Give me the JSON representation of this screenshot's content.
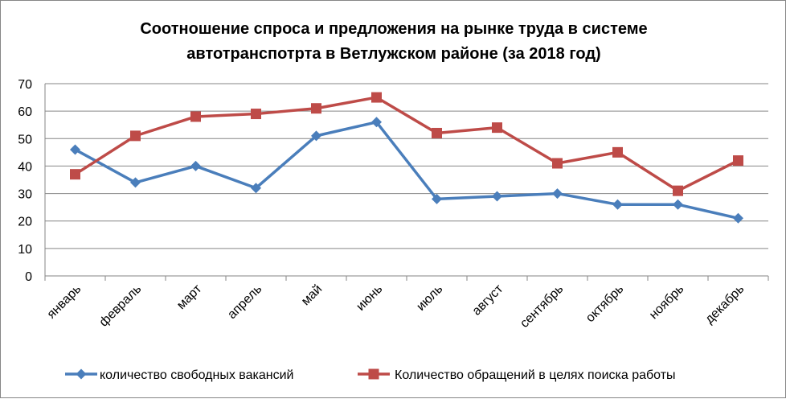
{
  "chart_data": {
    "type": "line",
    "title_lines": [
      "Соотношение спроса и предложения на рынке труда в системе",
      "автотранспотрта в Ветлужском районе (за 2018 год)"
    ],
    "categories": [
      "январь",
      "февраль",
      "март",
      "апрель",
      "май",
      "июнь",
      "июль",
      "август",
      "сентябрь",
      "октябрь",
      "ноябрь",
      "декабрь"
    ],
    "ylim": [
      0,
      70
    ],
    "yticks": [
      "0",
      "10",
      "20",
      "30",
      "40",
      "50",
      "60",
      "70"
    ],
    "grid": "horizontal",
    "legend_position": "bottom",
    "series": [
      {
        "name": "количество свободных вакансий",
        "color": "#4A7EBB",
        "marker": "diamond",
        "values": [
          46,
          34,
          40,
          32,
          51,
          56,
          28,
          29,
          30,
          26,
          26,
          21
        ]
      },
      {
        "name": "Количество обращений в целях поиска работы",
        "color": "#BE4B48",
        "marker": "square",
        "values": [
          37,
          51,
          58,
          59,
          61,
          65,
          52,
          54,
          41,
          45,
          31,
          42
        ]
      }
    ]
  }
}
